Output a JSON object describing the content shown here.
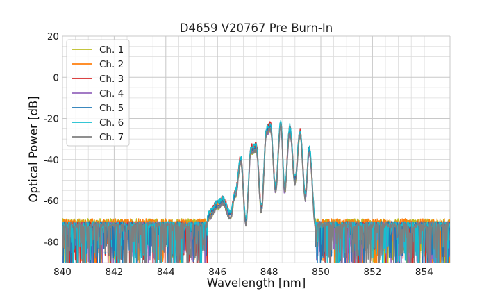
{
  "chart_data": {
    "type": "line",
    "title": "D4659 V20767 Pre Burn-In",
    "xlabel": "Wavelength [nm]",
    "ylabel": "Optical Power [dB]",
    "xlim": [
      840,
      855
    ],
    "ylim": [
      -90,
      20
    ],
    "xticks": [
      840,
      842,
      844,
      846,
      848,
      850,
      852,
      854
    ],
    "yticks": [
      -80,
      -60,
      -40,
      -20,
      0,
      20
    ],
    "x_minor_step": 0.5,
    "y_minor_step": 5,
    "grid": true,
    "legend_position": "upper-left",
    "noise_floor_db": -71,
    "series": [
      {
        "name": "Ch. 1",
        "color": "#bcbd22"
      },
      {
        "name": "Ch. 2",
        "color": "#ff7f0e"
      },
      {
        "name": "Ch. 3",
        "color": "#d62728"
      },
      {
        "name": "Ch. 4",
        "color": "#9467bd"
      },
      {
        "name": "Ch. 5",
        "color": "#1f77b4"
      },
      {
        "name": "Ch. 6",
        "color": "#17becf"
      },
      {
        "name": "Ch. 7",
        "color": "#7f7f7f"
      }
    ],
    "spectrum_envelope": {
      "x": [
        845.6,
        846.0,
        846.2,
        846.5,
        846.7,
        846.9,
        847.1,
        847.3,
        847.5,
        847.7,
        847.9,
        848.05,
        848.25,
        848.45,
        848.6,
        848.8,
        849.0,
        849.2,
        849.4,
        849.55,
        849.8
      ],
      "y": [
        -68,
        -62,
        -60,
        -67,
        -56,
        -40,
        -70,
        -35,
        -34,
        -64,
        -26,
        -24,
        -54,
        -22,
        -55,
        -25,
        -50,
        -27,
        -58,
        -35,
        -72
      ]
    }
  }
}
